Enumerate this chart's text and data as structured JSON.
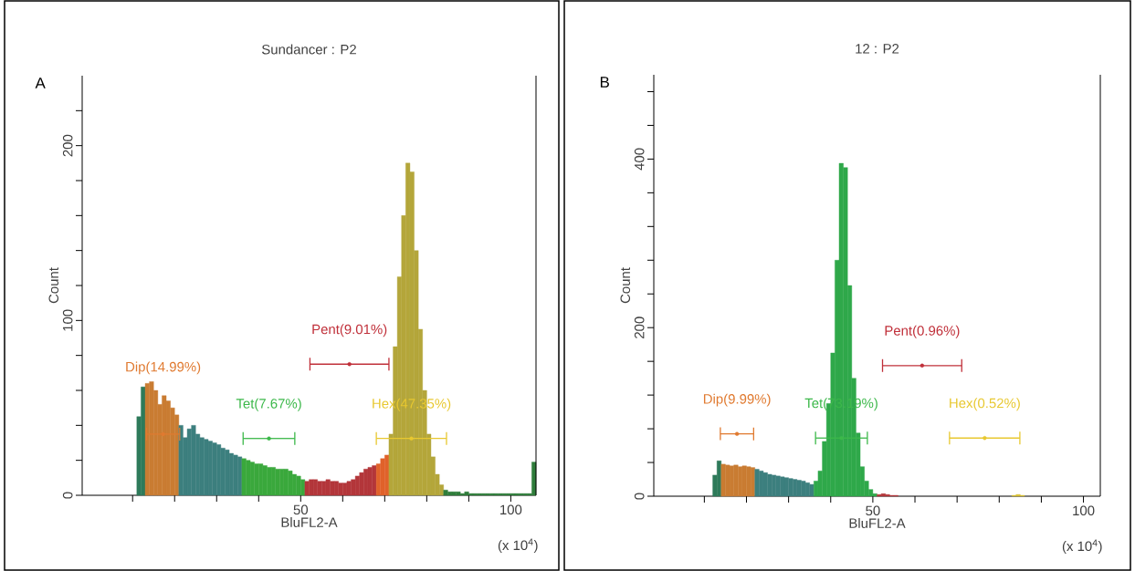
{
  "chart_data": [
    {
      "type": "histogram",
      "title": "Sundancer : P2",
      "xlabel": "BluFL2-A",
      "ylabel": "Count",
      "xlim": [
        -2,
        106
      ],
      "ylim": [
        0,
        240
      ],
      "xticks": [
        {
          "value": 10,
          "label": null
        },
        {
          "value": 20,
          "label": null
        },
        {
          "value": 30,
          "label": null
        },
        {
          "value": 40,
          "label": null
        },
        50,
        {
          "value": 60,
          "label": null
        },
        {
          "value": 70,
          "label": null
        },
        {
          "value": 80,
          "label": null
        },
        {
          "value": 90,
          "label": null
        },
        100
      ],
      "yticks": [
        0,
        {
          "value": 20,
          "label": null
        },
        {
          "value": 40,
          "label": null
        },
        {
          "value": 60,
          "label": null
        },
        {
          "value": 80,
          "label": null
        },
        100,
        {
          "value": 120,
          "label": null
        },
        {
          "value": 140,
          "label": null
        },
        {
          "value": 160,
          "label": null
        },
        {
          "value": 180,
          "label": null
        },
        200,
        {
          "value": 220,
          "label": null
        }
      ],
      "bins": [
        11,
        12,
        13,
        14,
        15,
        16,
        17,
        18,
        19,
        20,
        21,
        22,
        23,
        24,
        25,
        26,
        27,
        28,
        29,
        30,
        31,
        32,
        33,
        34,
        35,
        36,
        37,
        38,
        39,
        40,
        41,
        42,
        43,
        44,
        45,
        46,
        47,
        48,
        49,
        50,
        51,
        52,
        53,
        54,
        55,
        56,
        57,
        58,
        59,
        60,
        61,
        62,
        63,
        64,
        65,
        66,
        67,
        68,
        69,
        70,
        71,
        72,
        73,
        74,
        75,
        76,
        77,
        78,
        79,
        80,
        81,
        82,
        83,
        84,
        85,
        86,
        87,
        88,
        89,
        90,
        91,
        92,
        93,
        94,
        95,
        96,
        97,
        98,
        99,
        100,
        101,
        102,
        103,
        104,
        105,
        106
      ],
      "values": [
        45,
        62,
        64,
        65,
        60,
        52,
        57,
        54,
        50,
        46,
        40,
        33,
        38,
        40,
        35,
        33,
        32,
        31,
        30,
        29,
        27,
        26,
        24,
        23,
        22,
        21,
        20,
        19,
        18,
        18,
        17,
        16,
        16,
        15,
        15,
        15,
        14,
        12,
        11,
        9,
        8,
        9,
        9,
        8,
        8,
        9,
        8,
        8,
        7,
        7,
        8,
        9,
        11,
        13,
        15,
        16,
        17,
        18,
        21,
        23,
        35,
        85,
        125,
        160,
        190,
        185,
        140,
        95,
        60,
        35,
        22,
        12,
        6,
        3,
        2,
        2,
        2,
        1,
        2,
        1,
        1,
        1,
        1,
        1,
        1,
        1,
        1,
        1,
        1,
        1,
        1,
        1,
        1,
        1,
        19
      ],
      "colors": [
        "#2e7a5a",
        "#2e7a5a",
        "#c97c32",
        "#c97c32",
        "#c97c32",
        "#c97c32",
        "#c97c32",
        "#c97c32",
        "#c97c32",
        "#c97c32",
        "#3c7f7e",
        "#3c7f7e",
        "#3c7f7e",
        "#3c7f7e",
        "#3c7f7e",
        "#3c7f7e",
        "#3c7f7e",
        "#3c7f7e",
        "#3c7f7e",
        "#3c7f7e",
        "#3c7f7e",
        "#3c7f7e",
        "#3c7f7e",
        "#3c7f7e",
        "#3c7f7e",
        "#3aa83c",
        "#3aa83c",
        "#3aa83c",
        "#3aa83c",
        "#3aa83c",
        "#3aa83c",
        "#3aa83c",
        "#3aa83c",
        "#3aa83c",
        "#3aa83c",
        "#3aa83c",
        "#3aa83c",
        "#3aa83c",
        "#3aa83c",
        "#3aa83c",
        "#b3363a",
        "#b3363a",
        "#b3363a",
        "#b3363a",
        "#b3363a",
        "#b3363a",
        "#b3363a",
        "#b3363a",
        "#b3363a",
        "#b3363a",
        "#b3363a",
        "#b3363a",
        "#b3363a",
        "#b3363a",
        "#b3363a",
        "#b3363a",
        "#b3363a",
        "#e0622a",
        "#e0622a",
        "#e0622a",
        "#b4a63a",
        "#b4a63a",
        "#b4a63a",
        "#b4a63a",
        "#b4a63a",
        "#b4a63a",
        "#b4a63a",
        "#b4a63a",
        "#b4a63a",
        "#b4a63a",
        "#b4a63a",
        "#b4a63a",
        "#b4a63a",
        "#2f7d3b",
        "#2f7d3b",
        "#2f7d3b",
        "#2f7d3b",
        "#2f7d3b",
        "#2f7d3b",
        "#2f7d3b",
        "#2f7d3b",
        "#2f7d3b",
        "#2f7d3b",
        "#2f7d3b",
        "#2f7d3b",
        "#2f7d3b",
        "#2f7d3b",
        "#2f7d3b",
        "#2f7d3b",
        "#2f7d3b",
        "#2f7d3b",
        "#2f7d3b",
        "#2f7d3b",
        "#2f7d3b",
        "#2f7d3b"
      ],
      "series": [
        {
          "type": "scatter",
          "name": "Dip(14.99%)",
          "color": "#e07a30",
          "x": [
            17.25
          ],
          "values": [
            35
          ],
          "xerrors": [
            [
              13.3,
              21.2
            ]
          ]
        },
        {
          "type": "scatter",
          "name": "Pent(9.01%)",
          "color": "#c0303a",
          "x": [
            61.6
          ],
          "values": [
            75
          ],
          "xerrors": [
            [
              52.2,
              71
            ]
          ]
        },
        {
          "type": "scatter",
          "name": "Tet(7.67%)",
          "color": "#3cb84a",
          "x": [
            42.45
          ],
          "values": [
            32.5
          ],
          "xerrors": [
            [
              36.3,
              48.6
            ]
          ]
        },
        {
          "type": "scatter",
          "name": "Hex(47.35%)",
          "color": "#e8c830",
          "x": [
            76.35
          ],
          "values": [
            32.5
          ],
          "xerrors": [
            [
              68,
              84.7
            ]
          ]
        }
      ],
      "annotations": [
        "A",
        "(x 10$^{4}$)"
      ]
    },
    {
      "type": "histogram",
      "title": "12 : P2",
      "xlabel": "BluFL2-A",
      "ylabel": "Count",
      "xlim": [
        -2,
        104
      ],
      "ylim": [
        0,
        500
      ],
      "xticks": [
        {
          "value": 10,
          "label": null
        },
        {
          "value": 20,
          "label": null
        },
        {
          "value": 30,
          "label": null
        },
        {
          "value": 40,
          "label": null
        },
        50,
        {
          "value": 60,
          "label": null
        },
        {
          "value": 70,
          "label": null
        },
        {
          "value": 80,
          "label": null
        },
        {
          "value": 90,
          "label": null
        },
        100
      ],
      "yticks": [
        0,
        {
          "value": 40,
          "label": null
        },
        {
          "value": 80,
          "label": null
        },
        {
          "value": 120,
          "label": null
        },
        {
          "value": 160,
          "label": null
        },
        200,
        {
          "value": 240,
          "label": null
        },
        {
          "value": 280,
          "label": null
        },
        {
          "value": 320,
          "label": null
        },
        {
          "value": 360,
          "label": null
        },
        400,
        {
          "value": 440,
          "label": null
        },
        {
          "value": 480,
          "label": null
        }
      ],
      "bins": [
        12,
        13,
        14,
        15,
        16,
        17,
        18,
        19,
        20,
        21,
        22,
        23,
        24,
        25,
        26,
        27,
        28,
        29,
        30,
        31,
        32,
        33,
        34,
        35,
        36,
        37,
        38,
        39,
        40,
        41,
        42,
        43,
        44,
        45,
        46,
        47,
        48,
        49,
        50,
        51,
        52,
        53,
        54,
        55,
        56,
        57,
        58,
        59,
        60,
        61,
        62,
        63,
        64,
        65,
        66,
        67,
        68,
        69,
        70,
        71,
        72,
        73,
        74,
        75,
        76,
        77,
        78,
        79,
        80,
        81,
        82,
        83,
        84,
        85,
        86
      ],
      "values": [
        25,
        42,
        38,
        37,
        36,
        37,
        35,
        36,
        35,
        34,
        32,
        30,
        28,
        26,
        25,
        24,
        23,
        22,
        21,
        20,
        19,
        18,
        16,
        14,
        18,
        30,
        65,
        110,
        170,
        280,
        395,
        390,
        250,
        140,
        75,
        35,
        18,
        8,
        3,
        2,
        3,
        2,
        1,
        1,
        null,
        null,
        null,
        null,
        null,
        null,
        null,
        null,
        null,
        null,
        null,
        null,
        null,
        null,
        null,
        null,
        null,
        null,
        null,
        null,
        null,
        null,
        null,
        null,
        null,
        null,
        null,
        1,
        2,
        1
      ],
      "colors": [
        "#2e7a5a",
        "#2e7a5a",
        "#c97c32",
        "#c97c32",
        "#c97c32",
        "#c97c32",
        "#c97c32",
        "#c97c32",
        "#c97c32",
        "#c97c32",
        "#3c7f7e",
        "#3c7f7e",
        "#3c7f7e",
        "#3c7f7e",
        "#3c7f7e",
        "#3c7f7e",
        "#3c7f7e",
        "#3c7f7e",
        "#3c7f7e",
        "#3c7f7e",
        "#3c7f7e",
        "#3c7f7e",
        "#3c7f7e",
        "#3c7f7e",
        "#2fa84a",
        "#2fa84a",
        "#2fa84a",
        "#2fa84a",
        "#2fa84a",
        "#2fa84a",
        "#2fa84a",
        "#2fa84a",
        "#2fa84a",
        "#2fa84a",
        "#2fa84a",
        "#2fa84a",
        "#2fa84a",
        "#2fa84a",
        "#2fa84a",
        "#b3363a",
        "#b3363a",
        "#b3363a",
        "#b3363a",
        "#b3363a",
        "#b3363a",
        "#b3363a",
        "#b3363a",
        "#b3363a",
        "#b3363a",
        "#b3363a",
        "#b3363a",
        "#b3363a",
        "#b3363a",
        "#b3363a",
        "#b3363a",
        "#b3363a",
        "#b3363a",
        "#b3363a",
        "#b3363a",
        "#b3363a",
        "#b3363a",
        "#b3363a",
        "#b3363a",
        "#b3363a",
        "#b3363a",
        "#b3363a",
        "#b3363a",
        "#b3363a",
        "#b3363a",
        "#b3363a",
        "#b3363a",
        "#d8c030",
        "#d8c030",
        "#d8c030"
      ],
      "series": [
        {
          "type": "scatter",
          "name": "Dip(9.99%)",
          "color": "#e07a30",
          "x": [
            17.75
          ],
          "values": [
            74
          ],
          "xerrors": [
            [
              13.8,
              21.7
            ]
          ]
        },
        {
          "type": "scatter",
          "name": "Pent(0.96%)",
          "color": "#c0303a",
          "x": [
            61.7
          ],
          "values": [
            155
          ],
          "xerrors": [
            [
              52.3,
              71.1
            ]
          ]
        },
        {
          "type": "scatter",
          "name": "Tet(73.19%)",
          "color": "#3cb84a",
          "x": [
            42.55
          ],
          "values": [
            69
          ],
          "xerrors": [
            [
              36.4,
              48.7
            ]
          ]
        },
        {
          "type": "scatter",
          "name": "Hex(0.52%)",
          "color": "#e8c830",
          "x": [
            76.55
          ],
          "values": [
            69
          ],
          "xerrors": [
            [
              68.2,
              84.9
            ]
          ]
        }
      ],
      "annotations": [
        "B",
        "(x 10$^{4}$)"
      ]
    }
  ]
}
